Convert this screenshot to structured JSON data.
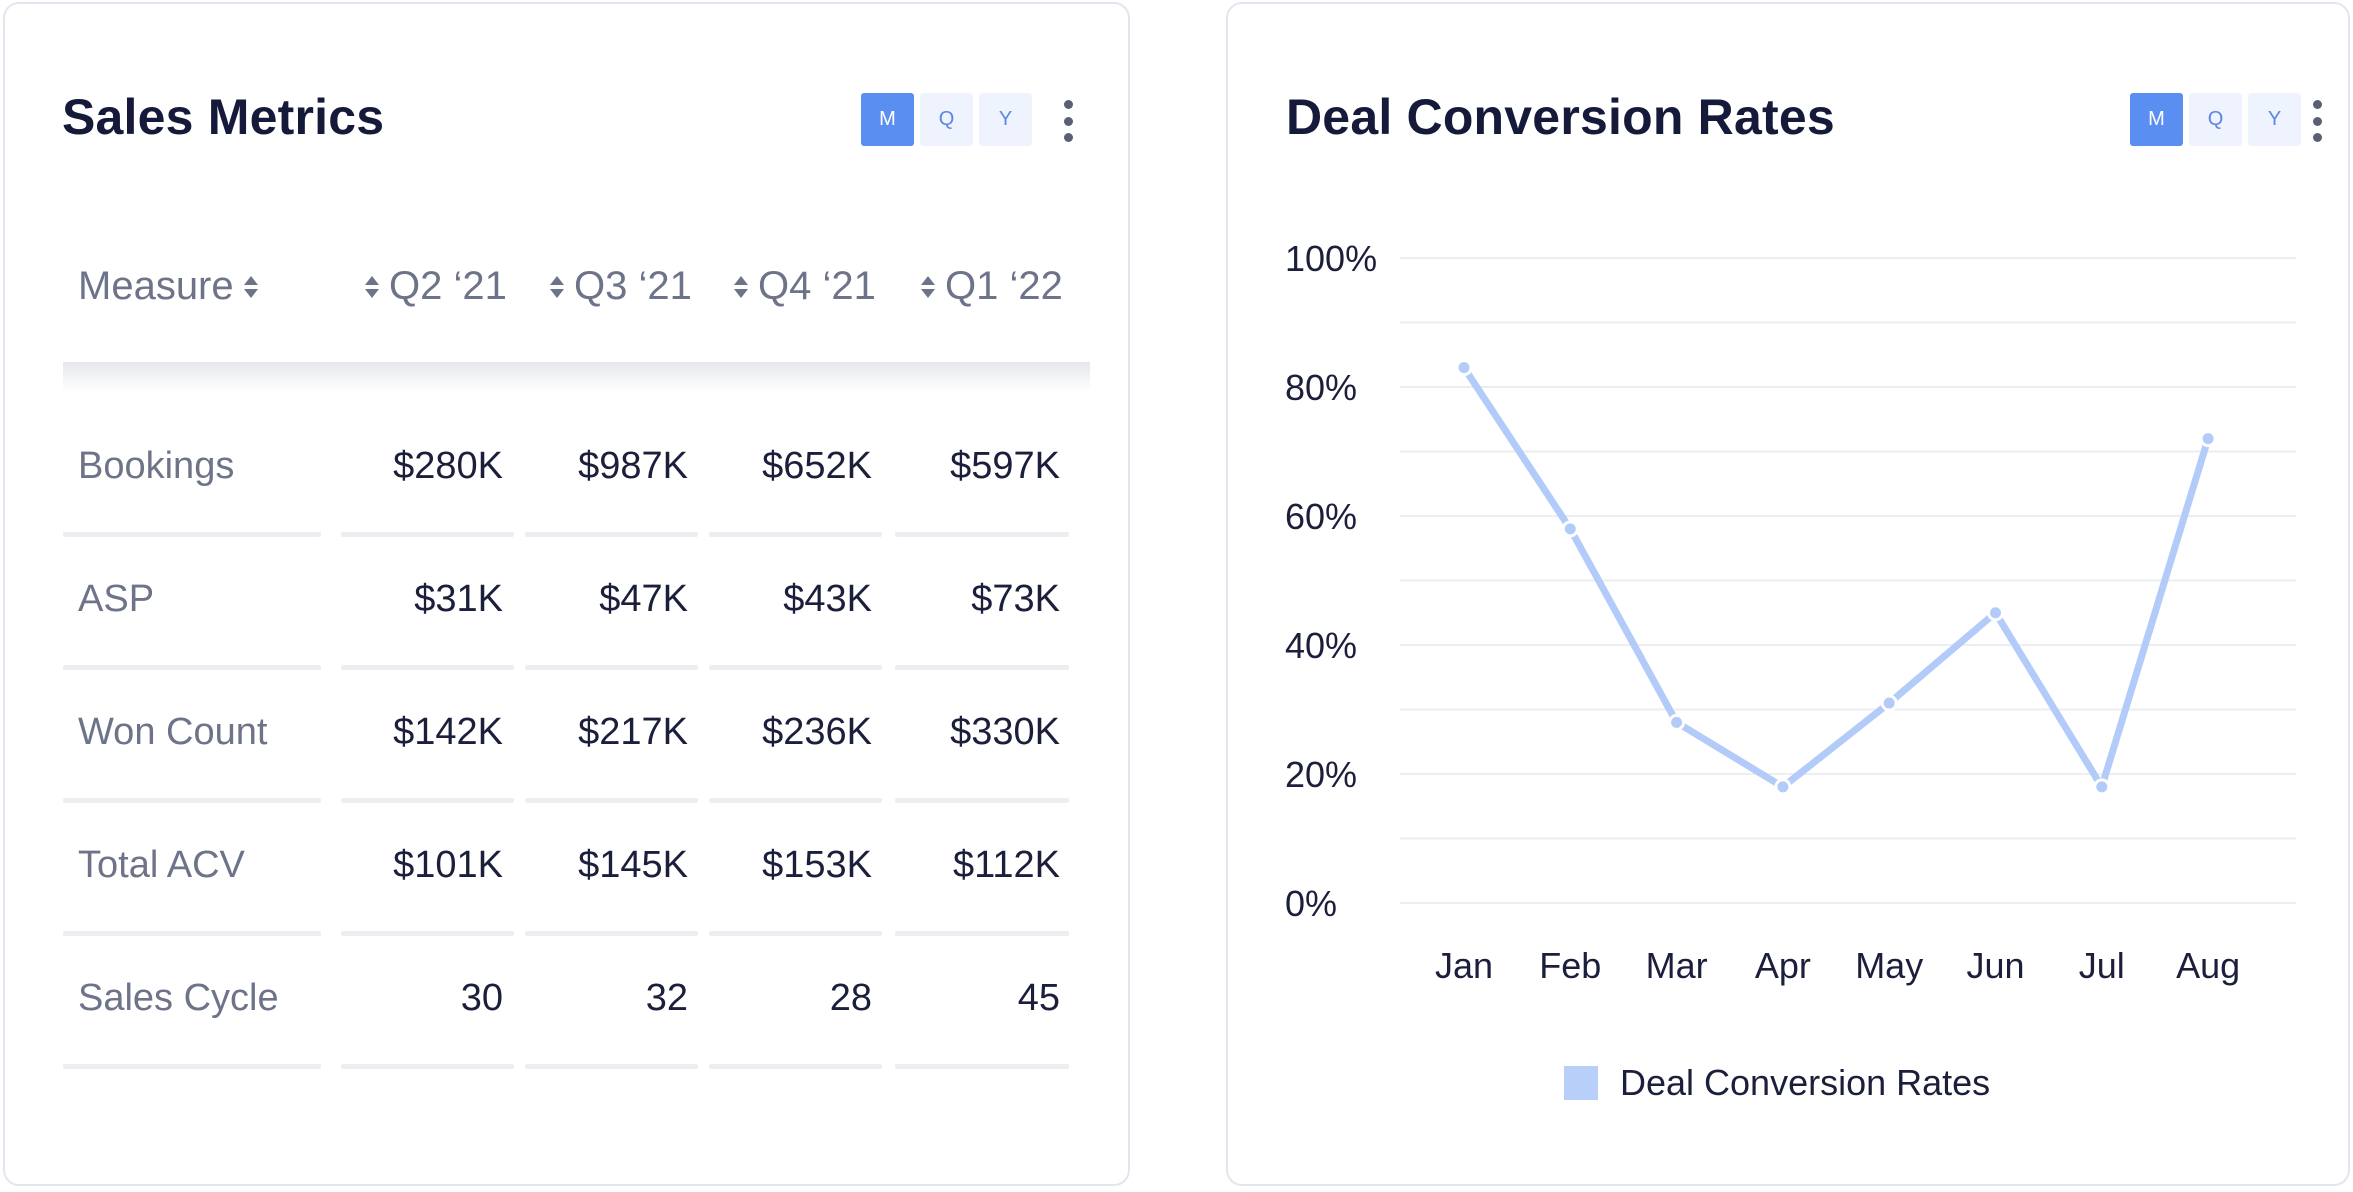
{
  "sales_metrics": {
    "title": "Sales Metrics",
    "period_buttons": [
      "M",
      "Q",
      "Y"
    ],
    "active_period": "M",
    "columns": [
      "Measure",
      "Q2 ‘21",
      "Q3 ‘21",
      "Q4 ‘21",
      "Q1 ‘22"
    ],
    "rows": [
      {
        "measure": "Bookings",
        "values": [
          "$280K",
          "$987K",
          "$652K",
          "$597K"
        ]
      },
      {
        "measure": "ASP",
        "values": [
          "$31K",
          "$47K",
          "$43K",
          "$73K"
        ]
      },
      {
        "measure": "Won Count",
        "values": [
          "$142K",
          "$217K",
          "$236K",
          "$330K"
        ]
      },
      {
        "measure": "Total ACV",
        "values": [
          "$101K",
          "$145K",
          "$153K",
          "$112K"
        ]
      },
      {
        "measure": "Sales Cycle",
        "values": [
          "30",
          "32",
          "28",
          "45"
        ]
      }
    ]
  },
  "deal_conversion": {
    "title": "Deal Conversion Rates",
    "period_buttons": [
      "M",
      "Q",
      "Y"
    ],
    "active_period": "M",
    "legend_label": "Deal Conversion Rates"
  },
  "colors": {
    "line": "#b3cbf8",
    "point": "#b3cbf8",
    "active_button": "#5a8ef0",
    "inactive_button": "#eef3fd"
  },
  "chart_data": {
    "type": "line",
    "title": "Deal Conversion Rates",
    "categories": [
      "Jan",
      "Feb",
      "Mar",
      "Apr",
      "May",
      "Jun",
      "Jul",
      "Aug"
    ],
    "series": [
      {
        "name": "Deal Conversion Rates",
        "values": [
          83,
          58,
          28,
          18,
          31,
          45,
          18,
          72
        ]
      }
    ],
    "yticks": [
      "0%",
      "20%",
      "40%",
      "60%",
      "80%",
      "100%"
    ],
    "ylim": [
      0,
      100
    ],
    "grid": true,
    "legend": "bottom-center"
  }
}
